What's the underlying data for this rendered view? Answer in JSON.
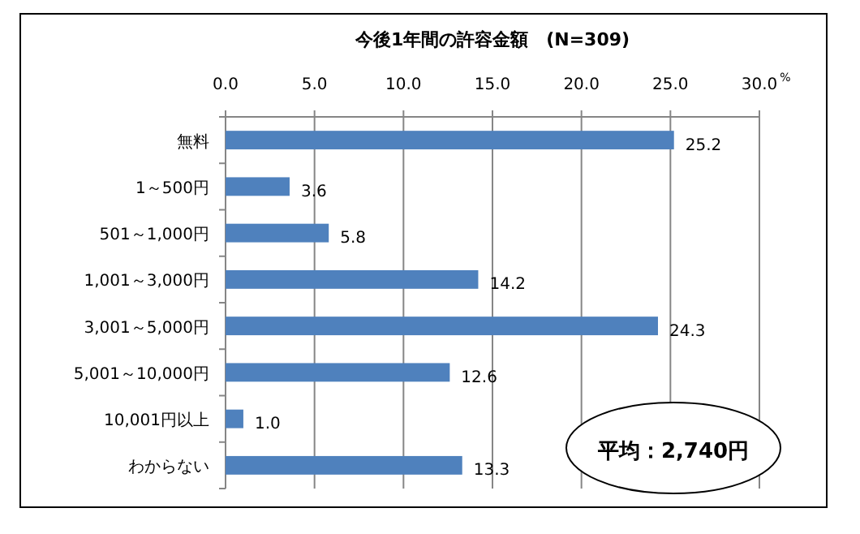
{
  "chart_data": {
    "type": "bar",
    "orientation": "horizontal",
    "title": "今後1年間の許容金額　(N=309)",
    "xlabel": "%",
    "categories": [
      "無料",
      "1～500円",
      "501～1,000円",
      "1,001～3,000円",
      "3,001～5,000円",
      "5,001～10,000円",
      "10,001円以上",
      "わからない"
    ],
    "values": [
      25.2,
      3.6,
      5.8,
      14.2,
      24.3,
      12.6,
      1.0,
      13.3
    ],
    "value_labels": [
      "25.2",
      "3.6",
      "5.8",
      "14.2",
      "24.3",
      "12.6",
      "1.0",
      "13.3"
    ],
    "color": "#4f81bd",
    "xlim": [
      0,
      30
    ],
    "xticks": [
      {
        "value": 0,
        "label": "0.0"
      },
      {
        "value": 5,
        "label": "5.0"
      },
      {
        "value": 10,
        "label": "10.0"
      },
      {
        "value": 15,
        "label": "15.0"
      },
      {
        "value": 20,
        "label": "20.0"
      },
      {
        "value": 25,
        "label": "25.0"
      },
      {
        "value": 30,
        "label": "30.0"
      }
    ],
    "grid": "x",
    "annotations": [
      "平均：2,740円"
    ]
  }
}
